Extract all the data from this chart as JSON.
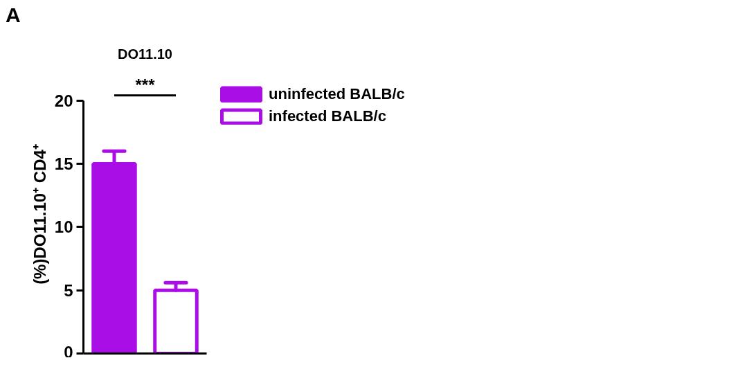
{
  "chart_data": {
    "type": "bar",
    "title": "DO11.10",
    "ylabel": "(%)DO11.10⁺ CD4⁺",
    "annotations": [
      "A",
      "***"
    ],
    "categories": [
      null,
      null
    ],
    "ylim": [
      0,
      20
    ],
    "yticks": [
      0,
      5,
      10,
      15,
      20
    ],
    "grid": false,
    "legend": "right",
    "series": [
      {
        "name": "uninfected BALB/c",
        "color": "#aa0ee6",
        "values": [
          15.0,
          null
        ],
        "errors": [
          [
            15.0,
            16.0
          ],
          null
        ]
      },
      {
        "name": "infected BALB/c",
        "color": "#aa0ee6",
        "values": [
          null,
          5.0
        ],
        "errors": [
          null,
          [
            5.0,
            5.6
          ]
        ]
      }
    ]
  }
}
